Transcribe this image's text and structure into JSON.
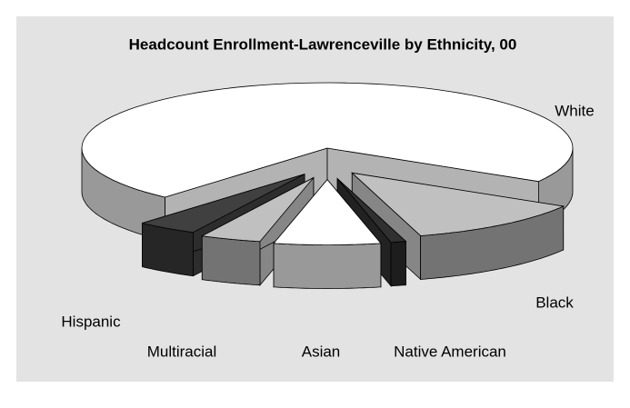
{
  "chart_data": {
    "type": "pie3d",
    "title": "Headcount Enrollment-Lawrenceville by Ethnicity, 00",
    "categories": [
      "White",
      "Black",
      "Native American",
      "Asian",
      "Multiracial",
      "Hispanic"
    ],
    "values": [
      72,
      12,
      1,
      7,
      4,
      4
    ],
    "colors": [
      "#ffffff",
      "#c0c0c0",
      "#303030",
      "#ffffff",
      "#c0c0c0",
      "#404040"
    ]
  }
}
